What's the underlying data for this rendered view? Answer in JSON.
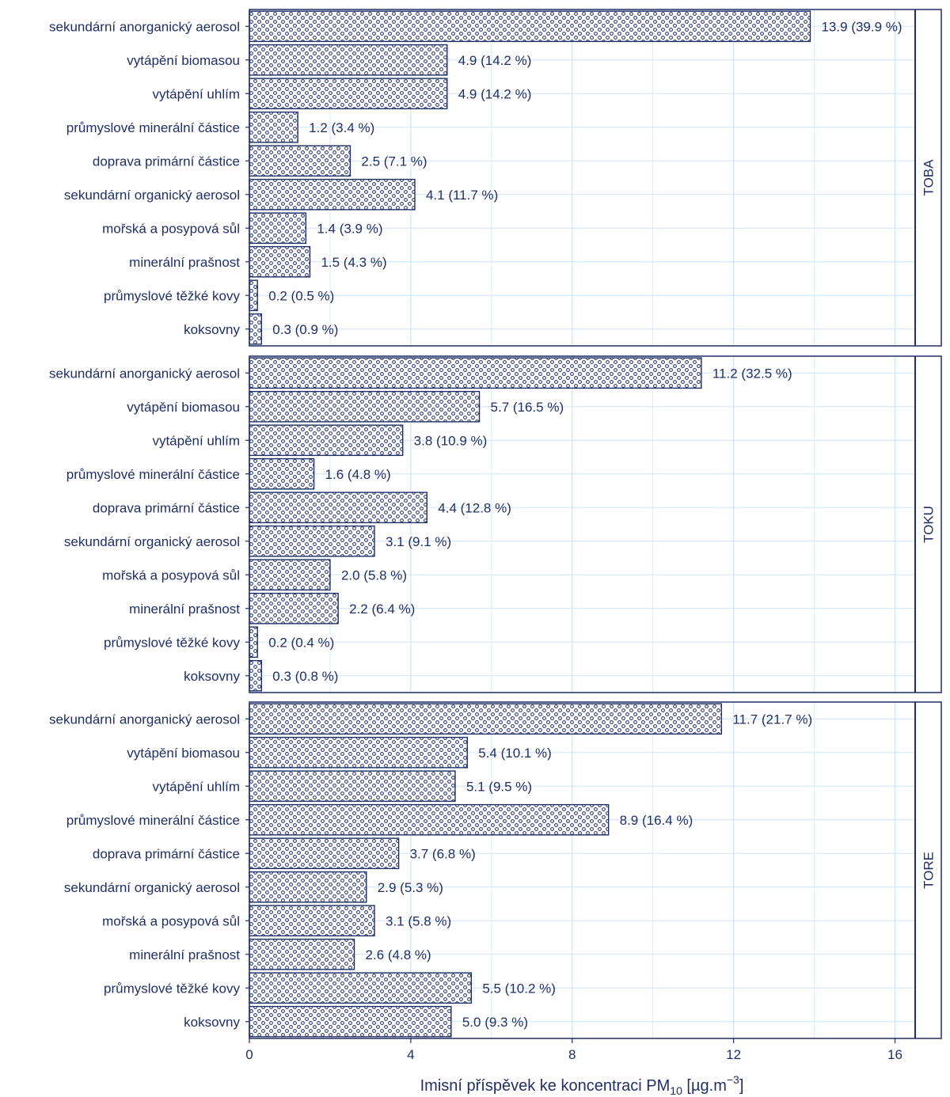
{
  "colors": {
    "ink": "#1f2f66",
    "grid": "#cde4f5",
    "fill": "#ffffff"
  },
  "chart_data": {
    "type": "bar",
    "orientation": "horizontal",
    "pattern": "dots",
    "xlabel_main": "Imisní příspěvek ke koncentraci  PM",
    "xlabel_sub": "10",
    "xlabel_unit_open": "  [µg.m",
    "xlabel_unit_sup": "−3",
    "xlabel_unit_close": "]",
    "xlim": [
      0,
      16.5
    ],
    "xticks": [
      0,
      4,
      8,
      12,
      16
    ],
    "grid": true,
    "categories": [
      "sekundární anorganický aerosol",
      "vytápění biomasou",
      "vytápění uhlím",
      "průmyslové minerální částice",
      "doprava  primární částice",
      "sekundární organický aerosol",
      "mořská a posypová sůl",
      "minerální prašnost",
      "průmyslové těžké kovy",
      "koksovny"
    ],
    "panels": [
      {
        "name": "TOBA",
        "values": [
          13.9,
          4.9,
          4.9,
          1.2,
          2.5,
          4.1,
          1.4,
          1.5,
          0.2,
          0.3
        ],
        "labels": [
          "13.9 (39.9 %)",
          "4.9 (14.2 %)",
          "4.9 (14.2 %)",
          "1.2 (3.4 %)",
          "2.5 (7.1 %)",
          "4.1 (11.7 %)",
          "1.4 (3.9 %)",
          "1.5 (4.3 %)",
          "0.2 (0.5 %)",
          "0.3 (0.9 %)"
        ]
      },
      {
        "name": "TOKU",
        "values": [
          11.2,
          5.7,
          3.8,
          1.6,
          4.4,
          3.1,
          2.0,
          2.2,
          0.2,
          0.3
        ],
        "labels": [
          "11.2 (32.5 %)",
          "5.7 (16.5 %)",
          "3.8 (10.9 %)",
          "1.6 (4.8 %)",
          "4.4 (12.8 %)",
          "3.1 (9.1 %)",
          "2.0 (5.8 %)",
          "2.2 (6.4 %)",
          "0.2 (0.4 %)",
          "0.3 (0.8 %)"
        ]
      },
      {
        "name": "TORE",
        "values": [
          11.7,
          5.4,
          5.1,
          8.9,
          3.7,
          2.9,
          3.1,
          2.6,
          5.5,
          5.0
        ],
        "labels": [
          "11.7 (21.7 %)",
          "5.4 (10.1 %)",
          "5.1 (9.5 %)",
          "8.9 (16.4 %)",
          "3.7 (6.8 %)",
          "2.9 (5.3 %)",
          "3.1 (5.8 %)",
          "2.6 (4.8 %)",
          "5.5 (10.2 %)",
          "5.0 (9.3 %)"
        ]
      }
    ]
  }
}
